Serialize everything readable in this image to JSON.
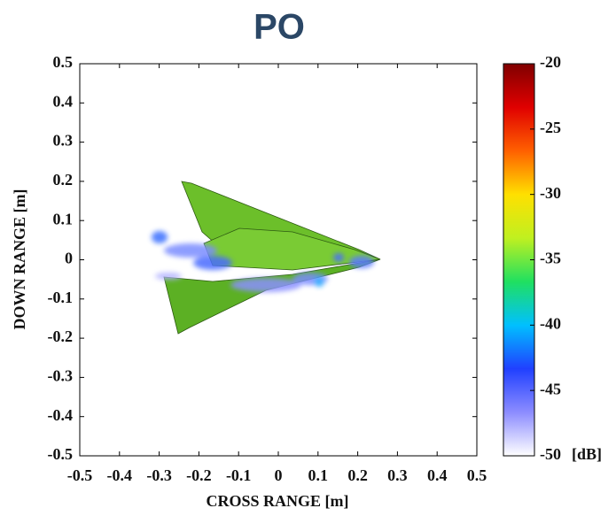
{
  "chart_data": {
    "type": "image",
    "title": "PO",
    "xlabel": "CROSS RANGE [m]",
    "ylabel": "DOWN RANGE [m]",
    "xlim": [
      -0.5,
      0.5
    ],
    "xticks": [
      -0.5,
      -0.4,
      -0.3,
      -0.2,
      -0.1,
      0,
      0.1,
      0.2,
      0.3,
      0.4,
      0.5
    ],
    "ylim": [
      -0.5,
      0.5
    ],
    "yticks": [
      -0.5,
      -0.4,
      -0.3,
      -0.2,
      -0.1,
      0,
      0.1,
      0.2,
      0.3,
      0.4,
      0.5
    ],
    "colorbar": {
      "clim": [
        -50,
        -20
      ],
      "ticks": [
        -20,
        -25,
        -30,
        -35,
        -40,
        -45,
        -50
      ],
      "label": "[dB]",
      "colormap": [
        "#ffffff",
        "#8c8cff",
        "#2040ff",
        "#00c0ff",
        "#20e060",
        "#c0f020",
        "#ffe000",
        "#ff6000",
        "#e00000",
        "#800000"
      ]
    }
  }
}
